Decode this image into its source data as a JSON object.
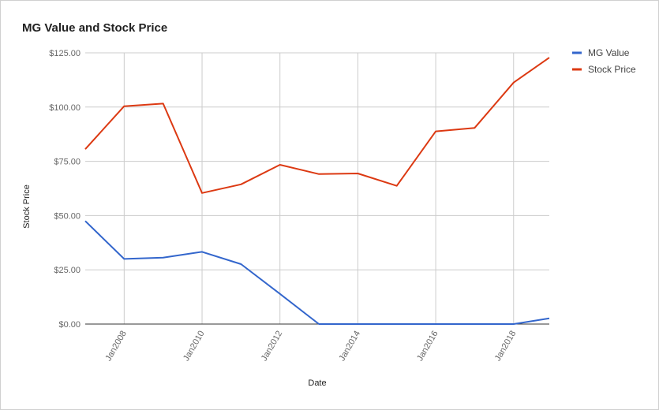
{
  "chart_data": {
    "type": "line",
    "title": "MG Value and Stock Price",
    "xlabel": "Date",
    "ylabel": "Stock Price",
    "ylim": [
      0,
      125
    ],
    "xlim": [
      "2007-01",
      "2018-12"
    ],
    "y_ticks": [
      {
        "value": 0,
        "label": "$0.00"
      },
      {
        "value": 25,
        "label": "$25.00"
      },
      {
        "value": 50,
        "label": "$50.00"
      },
      {
        "value": 75,
        "label": "$75.00"
      },
      {
        "value": 100,
        "label": "$100.00"
      },
      {
        "value": 125,
        "label": "$125.00"
      }
    ],
    "x_ticks": [
      {
        "value": "2008-01",
        "label": "Jan2008"
      },
      {
        "value": "2010-01",
        "label": "Jan2010"
      },
      {
        "value": "2012-01",
        "label": "Jan2012"
      },
      {
        "value": "2014-01",
        "label": "Jan2014"
      },
      {
        "value": "2016-01",
        "label": "Jan2016"
      },
      {
        "value": "2018-01",
        "label": "Jan2018"
      }
    ],
    "grid": true,
    "legend_position": "right",
    "x": [
      "2007-01",
      "2008-01",
      "2009-01",
      "2010-01",
      "2011-01",
      "2012-01",
      "2013-01",
      "2014-01",
      "2015-01",
      "2016-01",
      "2017-01",
      "2018-01",
      "2018-12"
    ],
    "series": [
      {
        "name": "MG Value",
        "color": "#3366cc",
        "values": [
          47.5,
          30.0,
          30.6,
          33.3,
          27.6,
          13.9,
          0,
          0,
          0,
          0,
          0,
          0,
          2.6
        ]
      },
      {
        "name": "Stock Price",
        "color": "#dc3912",
        "values": [
          80.6,
          100.4,
          101.6,
          60.4,
          64.4,
          73.4,
          69.1,
          69.4,
          63.7,
          88.8,
          90.4,
          111.3,
          122.8
        ]
      }
    ]
  }
}
